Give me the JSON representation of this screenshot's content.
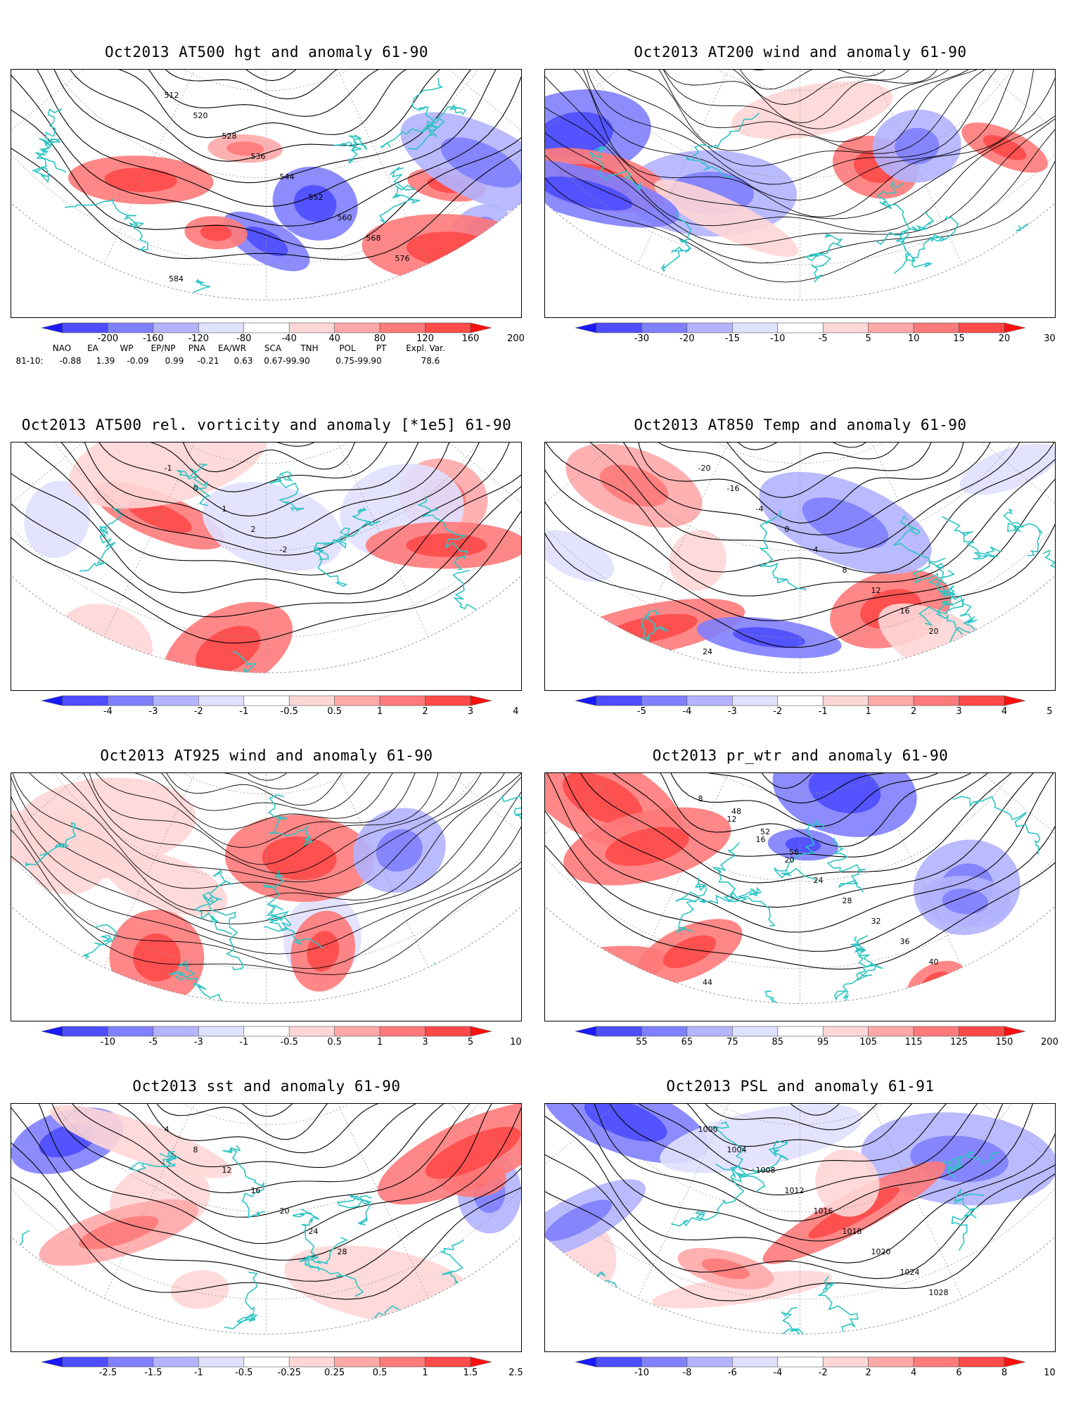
{
  "panels": [
    {
      "id": "hgt500",
      "title": "Oct2013 AT500 hgt and anomaly 61-90",
      "map_type": "contour + shaded anomaly",
      "contour_labels": [
        "512",
        "520",
        "528",
        "536",
        "544",
        "552",
        "560",
        "568",
        "576",
        "584"
      ],
      "colorbar": {
        "labels": [
          "-200",
          "-160",
          "-120",
          "-80",
          "-40",
          "40",
          "80",
          "120",
          "160",
          "200"
        ],
        "colors": [
          "#1a1aff",
          "#4d4dff",
          "#8080ff",
          "#b3b3ff",
          "#e0e0ff",
          "#ffffff",
          "#ffd6d6",
          "#ffa8a8",
          "#ff7a7a",
          "#ff4a4a",
          "#ff0f0f"
        ]
      }
    },
    {
      "id": "wind200",
      "title": "Oct2013 AT200 wind and anomaly 61-90",
      "map_type": "streamlines + shaded anomaly",
      "contour_labels": [],
      "colorbar": {
        "labels": [
          "-30",
          "-20",
          "-15",
          "-10",
          "-5",
          "5",
          "10",
          "15",
          "20",
          "30"
        ],
        "colors": [
          "#1a1aff",
          "#4d4dff",
          "#8080ff",
          "#b3b3ff",
          "#e0e0ff",
          "#ffffff",
          "#ffd6d6",
          "#ffa8a8",
          "#ff7a7a",
          "#ff4a4a",
          "#ff0f0f"
        ]
      }
    },
    {
      "id": "vort500",
      "title": "Oct2013 AT500 rel. vorticity and anomaly [*1e5] 61-90",
      "map_type": "contour + shaded anomaly",
      "contour_labels": [
        "-1",
        "0",
        "1",
        "2",
        "-2"
      ],
      "colorbar": {
        "labels": [
          "-4",
          "-3",
          "-2",
          "-1",
          "-0.5",
          "0.5",
          "1",
          "2",
          "3",
          "4"
        ],
        "colors": [
          "#1a1aff",
          "#4d4dff",
          "#8080ff",
          "#b3b3ff",
          "#e0e0ff",
          "#ffffff",
          "#ffd6d6",
          "#ffa8a8",
          "#ff7a7a",
          "#ff4a4a",
          "#ff0f0f"
        ]
      }
    },
    {
      "id": "temp850",
      "title": "Oct2013 AT850 Temp and anomaly 61-90",
      "map_type": "contour + shaded anomaly",
      "contour_labels": [
        "-20",
        "-16",
        "-4",
        "0",
        "4",
        "8",
        "12",
        "16",
        "20",
        "24"
      ],
      "colorbar": {
        "labels": [
          "-5",
          "-4",
          "-3",
          "-2",
          "-1",
          "1",
          "2",
          "3",
          "4",
          "5"
        ],
        "colors": [
          "#1a1aff",
          "#4d4dff",
          "#8080ff",
          "#b3b3ff",
          "#e0e0ff",
          "#ffffff",
          "#ffd6d6",
          "#ffa8a8",
          "#ff7a7a",
          "#ff4a4a",
          "#ff0f0f"
        ]
      }
    },
    {
      "id": "wind925",
      "title": "Oct2013 AT925 wind and anomaly 61-90",
      "map_type": "streamlines + shaded anomaly",
      "contour_labels": [],
      "colorbar": {
        "labels": [
          "-10",
          "-5",
          "-3",
          "-1",
          "-0.5",
          "0.5",
          "1",
          "3",
          "5",
          "10"
        ],
        "colors": [
          "#1a1aff",
          "#4d4dff",
          "#8080ff",
          "#b3b3ff",
          "#e0e0ff",
          "#ffffff",
          "#ffd6d6",
          "#ffa8a8",
          "#ff7a7a",
          "#ff4a4a",
          "#ff0f0f"
        ]
      }
    },
    {
      "id": "prwtr",
      "title": "Oct2013 pr_wtr and anomaly 61-90",
      "map_type": "contour + shaded anomaly",
      "contour_labels": [
        "8",
        "12",
        "16",
        "20",
        "24",
        "28",
        "32",
        "36",
        "40",
        "44",
        "48",
        "52",
        "56"
      ],
      "colorbar": {
        "labels": [
          "55",
          "65",
          "75",
          "85",
          "95",
          "105",
          "115",
          "125",
          "150",
          "200"
        ],
        "colors": [
          "#1a1aff",
          "#4d4dff",
          "#8080ff",
          "#b3b3ff",
          "#e0e0ff",
          "#ffffff",
          "#ffd6d6",
          "#ffa8a8",
          "#ff7a7a",
          "#ff4a4a",
          "#ff0f0f"
        ]
      }
    },
    {
      "id": "sst",
      "title": "Oct2013 sst and anomaly 61-90",
      "map_type": "contour + shaded anomaly",
      "contour_labels": [
        "4",
        "8",
        "12",
        "16",
        "20",
        "24",
        "28"
      ],
      "colorbar": {
        "labels": [
          "-2.5",
          "-1.5",
          "-1",
          "-0.5",
          "-0.25",
          "0.25",
          "0.5",
          "1",
          "1.5",
          "2.5"
        ],
        "colors": [
          "#1a1aff",
          "#4d4dff",
          "#8080ff",
          "#b3b3ff",
          "#e0e0ff",
          "#ffffff",
          "#ffd6d6",
          "#ffa8a8",
          "#ff7a7a",
          "#ff4a4a",
          "#ff0f0f"
        ]
      }
    },
    {
      "id": "psl",
      "title": "Oct2013 PSL and anomaly 61-91",
      "map_type": "contour + shaded anomaly",
      "contour_labels": [
        "1000",
        "1004",
        "1008",
        "1012",
        "1016",
        "1018",
        "1020",
        "1024",
        "1028"
      ],
      "colorbar": {
        "labels": [
          "-10",
          "-8",
          "-6",
          "-4",
          "-2",
          "2",
          "4",
          "6",
          "8",
          "10"
        ],
        "colors": [
          "#1a1aff",
          "#4d4dff",
          "#8080ff",
          "#b3b3ff",
          "#e0e0ff",
          "#ffffff",
          "#ffd6d6",
          "#ffa8a8",
          "#ff7a7a",
          "#ff4a4a",
          "#ff0f0f"
        ]
      }
    }
  ],
  "teleconnection_indices": {
    "headers": [
      "NAO",
      "EA",
      "WP",
      "EP/NP",
      "PNA",
      "EA/WR",
      "SCA",
      "TNH",
      "POL",
      "PT",
      "Expl. Var."
    ],
    "row_label": "81-10:",
    "values": [
      "-0.88",
      "1.39",
      "-0.09",
      "0.99",
      "-0.21",
      "0.63",
      "0.67-99.90",
      "",
      "0.75-99.90",
      "",
      "78.6"
    ]
  },
  "styles": {
    "coast_color": "#2ec4c4",
    "grid_color": "#999999",
    "contour_color": "#000000"
  }
}
